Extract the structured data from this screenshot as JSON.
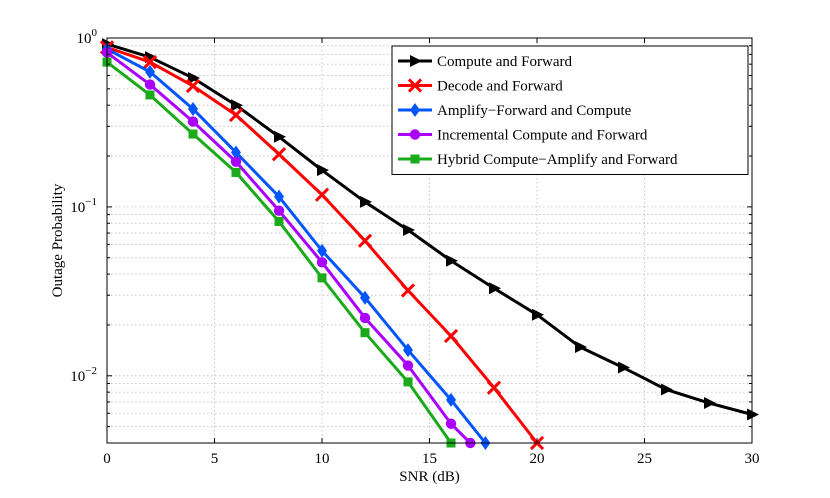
{
  "chart_data": {
    "type": "line",
    "title": "",
    "xlabel": "SNR (dB)",
    "ylabel": "Outage Probability",
    "xlim": [
      0,
      30
    ],
    "ylim": [
      0.004,
      1
    ],
    "yscale": "log",
    "grid": true,
    "legend_position": "top-right",
    "x_ticks": [
      0,
      5,
      10,
      15,
      20,
      25,
      30
    ],
    "x_tick_labels": [
      "0",
      "5",
      "10",
      "15",
      "20",
      "25",
      "30"
    ],
    "y_ticks": [
      {
        "value": 1,
        "base": "10",
        "exp": "0"
      },
      {
        "value": 0.1,
        "base": "10",
        "exp": "−1"
      },
      {
        "value": 0.01,
        "base": "10",
        "exp": "−2"
      }
    ],
    "series": [
      {
        "name": "Compute and Forward",
        "color": "#000000",
        "marker": "triangle-right",
        "x": [
          0,
          2,
          4,
          6,
          8,
          10,
          12,
          14,
          16,
          18,
          20,
          22,
          24,
          26,
          28,
          30
        ],
        "y": [
          0.92,
          0.77,
          0.58,
          0.4,
          0.26,
          0.165,
          0.107,
          0.073,
          0.048,
          0.033,
          0.023,
          0.0148,
          0.0112,
          0.0083,
          0.0069,
          0.0059
        ]
      },
      {
        "name": "Decode and Forward",
        "color": "#ff0000",
        "marker": "x",
        "x": [
          0,
          2,
          4,
          6,
          8,
          10,
          12,
          14,
          16,
          18,
          20
        ],
        "y": [
          0.88,
          0.72,
          0.52,
          0.35,
          0.205,
          0.118,
          0.063,
          0.032,
          0.0172,
          0.0085,
          0.004
        ]
      },
      {
        "name": "Amplify−Forward and Compute",
        "color": "#0055ff",
        "marker": "diamond",
        "x": [
          0,
          2,
          4,
          6,
          8,
          10,
          12,
          14,
          16,
          17.6
        ],
        "y": [
          0.86,
          0.63,
          0.38,
          0.21,
          0.115,
          0.055,
          0.029,
          0.0142,
          0.0072,
          0.004
        ]
      },
      {
        "name": "Incremental Compute and Forward",
        "color": "#aa00ff",
        "marker": "circle",
        "x": [
          0,
          2,
          4,
          6,
          8,
          10,
          12,
          14,
          16,
          16.9
        ],
        "y": [
          0.82,
          0.53,
          0.32,
          0.185,
          0.095,
          0.047,
          0.022,
          0.0115,
          0.0052,
          0.004
        ]
      },
      {
        "name": "Hybrid Compute−Amplify and Forward",
        "color": "#1aaa1a",
        "marker": "square",
        "x": [
          0,
          2,
          4,
          6,
          8,
          10,
          12,
          14,
          16
        ],
        "y": [
          0.72,
          0.46,
          0.27,
          0.16,
          0.082,
          0.038,
          0.018,
          0.0092,
          0.004
        ]
      }
    ]
  }
}
